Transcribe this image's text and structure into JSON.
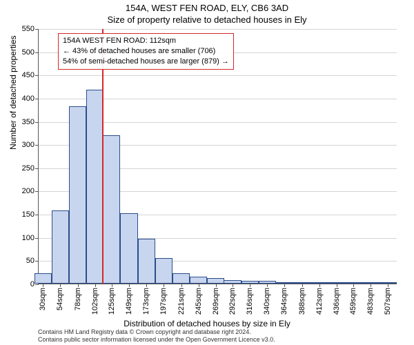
{
  "title_main": "154A, WEST FEN ROAD, ELY, CB6 3AD",
  "title_sub": "Size of property relative to detached houses in Ely",
  "y_axis_label": "Number of detached properties",
  "x_axis_label": "Distribution of detached houses by size in Ely",
  "chart": {
    "type": "histogram",
    "ylim": [
      0,
      550
    ],
    "ytick_step": 50,
    "xlim": [
      24,
      520
    ],
    "xticks": [
      30,
      54,
      78,
      102,
      125,
      149,
      173,
      197,
      221,
      245,
      269,
      292,
      316,
      340,
      364,
      388,
      412,
      436,
      459,
      483,
      507
    ],
    "xtick_suffix": "sqm",
    "bar_color": "#c8d5ef",
    "bar_border_color": "#2a4d8a",
    "grid_color": "#888888",
    "bin_width": 24,
    "bins": [
      {
        "x": 30,
        "count": 22
      },
      {
        "x": 54,
        "count": 157
      },
      {
        "x": 78,
        "count": 382
      },
      {
        "x": 102,
        "count": 418
      },
      {
        "x": 125,
        "count": 320
      },
      {
        "x": 149,
        "count": 152
      },
      {
        "x": 173,
        "count": 97
      },
      {
        "x": 197,
        "count": 55
      },
      {
        "x": 221,
        "count": 22
      },
      {
        "x": 245,
        "count": 15
      },
      {
        "x": 269,
        "count": 12
      },
      {
        "x": 292,
        "count": 8
      },
      {
        "x": 316,
        "count": 6
      },
      {
        "x": 340,
        "count": 6
      },
      {
        "x": 364,
        "count": 2
      },
      {
        "x": 388,
        "count": 2
      },
      {
        "x": 412,
        "count": 1
      },
      {
        "x": 436,
        "count": 1
      },
      {
        "x": 459,
        "count": 1
      },
      {
        "x": 483,
        "count": 1
      },
      {
        "x": 507,
        "count": 1
      }
    ],
    "reference_line": {
      "x": 112,
      "color": "#d62728"
    }
  },
  "callout": {
    "border_color": "#d62728",
    "lines": [
      "154A WEST FEN ROAD: 112sqm",
      "← 43% of detached houses are smaller (706)",
      "54% of semi-detached houses are larger (879) →"
    ]
  },
  "attribution": {
    "line1": "Contains HM Land Registry data © Crown copyright and database right 2024.",
    "line2": "Contains public sector information licensed under the Open Government Licence v3.0."
  }
}
